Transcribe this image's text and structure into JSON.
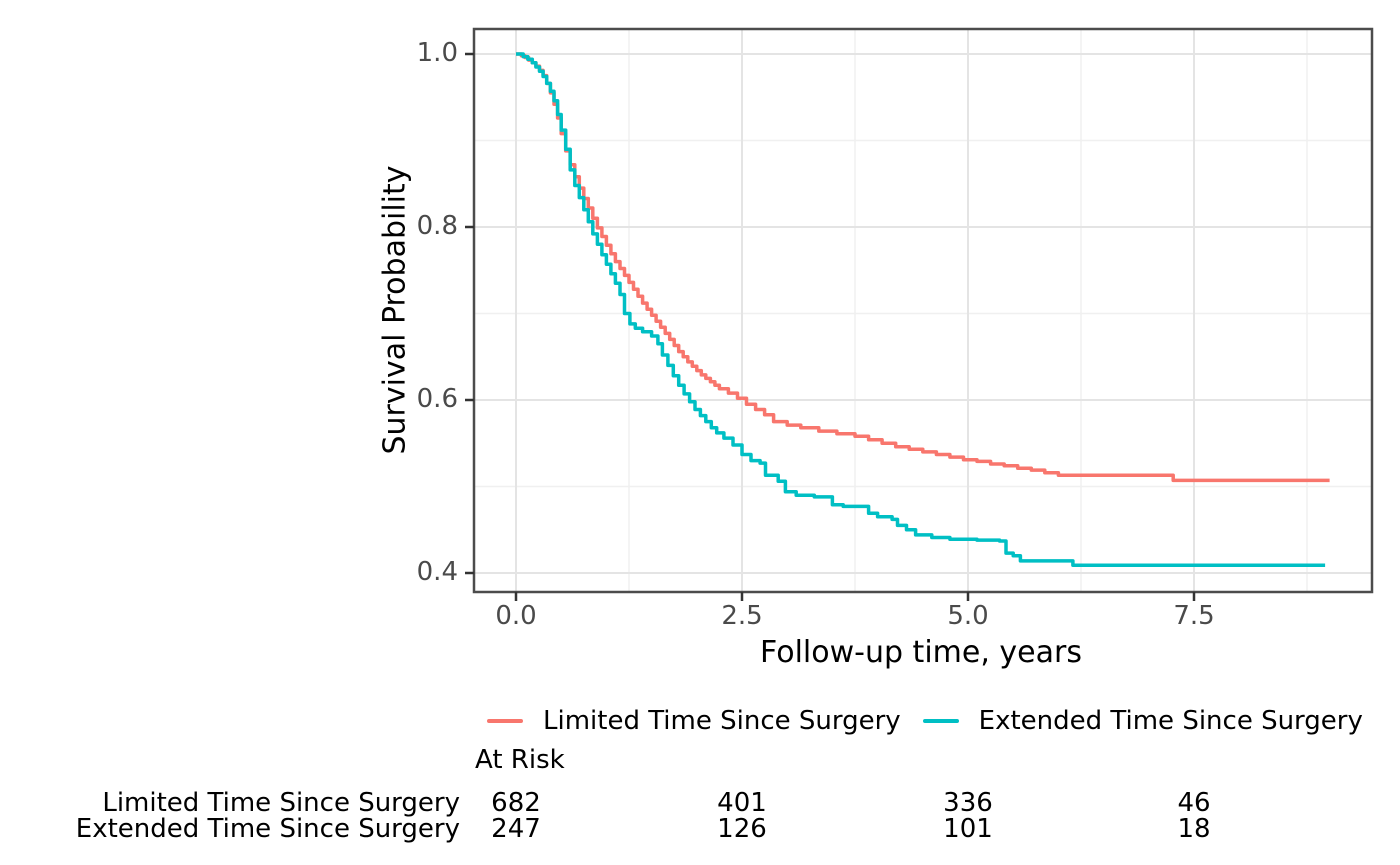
{
  "chart_data": {
    "type": "line",
    "subtype": "kaplan-meier-step",
    "title": "",
    "xlabel": "Follow-up time, years",
    "ylabel": "Survival Probability",
    "x_ticks": [
      0.0,
      2.5,
      5.0,
      7.5
    ],
    "x_tick_labels": [
      "0.0",
      "2.5",
      "5.0",
      "7.5"
    ],
    "x_minor_ticks": [
      1.25,
      3.75,
      6.25,
      8.75
    ],
    "y_ticks": [
      0.4,
      0.6,
      0.8,
      1.0
    ],
    "y_tick_labels": [
      "0.4",
      "0.6",
      "0.8",
      "1.0"
    ],
    "y_minor_ticks": [
      0.5,
      0.7,
      0.9
    ],
    "xlim": [
      -0.465,
      9.47
    ],
    "ylim": [
      0.378,
      1.029
    ],
    "grid": "on",
    "legend_position": "bottom",
    "series": [
      {
        "name": "Limited Time Since Surgery",
        "color": "#F8766D",
        "points": [
          [
            0.0,
            1.0
          ],
          [
            0.06,
            0.998
          ],
          [
            0.1,
            0.996
          ],
          [
            0.14,
            0.993
          ],
          [
            0.18,
            0.99
          ],
          [
            0.22,
            0.986
          ],
          [
            0.26,
            0.981
          ],
          [
            0.3,
            0.975
          ],
          [
            0.34,
            0.966
          ],
          [
            0.38,
            0.955
          ],
          [
            0.42,
            0.942
          ],
          [
            0.46,
            0.926
          ],
          [
            0.5,
            0.908
          ],
          [
            0.55,
            0.888
          ],
          [
            0.6,
            0.872
          ],
          [
            0.65,
            0.858
          ],
          [
            0.7,
            0.845
          ],
          [
            0.75,
            0.833
          ],
          [
            0.8,
            0.822
          ],
          [
            0.85,
            0.81
          ],
          [
            0.9,
            0.799
          ],
          [
            0.95,
            0.789
          ],
          [
            1.0,
            0.779
          ],
          [
            1.05,
            0.769
          ],
          [
            1.1,
            0.76
          ],
          [
            1.15,
            0.752
          ],
          [
            1.2,
            0.744
          ],
          [
            1.25,
            0.736
          ],
          [
            1.3,
            0.728
          ],
          [
            1.35,
            0.72
          ],
          [
            1.4,
            0.712
          ],
          [
            1.45,
            0.705
          ],
          [
            1.5,
            0.698
          ],
          [
            1.55,
            0.691
          ],
          [
            1.6,
            0.684
          ],
          [
            1.65,
            0.677
          ],
          [
            1.7,
            0.67
          ],
          [
            1.75,
            0.663
          ],
          [
            1.8,
            0.656
          ],
          [
            1.85,
            0.65
          ],
          [
            1.9,
            0.644
          ],
          [
            1.95,
            0.639
          ],
          [
            2.0,
            0.634
          ],
          [
            2.05,
            0.629
          ],
          [
            2.1,
            0.625
          ],
          [
            2.15,
            0.621
          ],
          [
            2.2,
            0.617
          ],
          [
            2.25,
            0.613
          ],
          [
            2.35,
            0.608
          ],
          [
            2.45,
            0.602
          ],
          [
            2.55,
            0.595
          ],
          [
            2.65,
            0.589
          ],
          [
            2.75,
            0.583
          ],
          [
            2.85,
            0.575
          ],
          [
            3.0,
            0.571
          ],
          [
            3.15,
            0.568
          ],
          [
            3.35,
            0.564
          ],
          [
            3.55,
            0.561
          ],
          [
            3.75,
            0.558
          ],
          [
            3.9,
            0.554
          ],
          [
            4.05,
            0.55
          ],
          [
            4.2,
            0.546
          ],
          [
            4.35,
            0.543
          ],
          [
            4.5,
            0.54
          ],
          [
            4.65,
            0.537
          ],
          [
            4.8,
            0.534
          ],
          [
            4.95,
            0.531
          ],
          [
            5.1,
            0.529
          ],
          [
            5.25,
            0.526
          ],
          [
            5.4,
            0.524
          ],
          [
            5.55,
            0.521
          ],
          [
            5.7,
            0.519
          ],
          [
            5.85,
            0.516
          ],
          [
            6.0,
            0.513
          ],
          [
            7.27,
            0.507
          ],
          [
            9.0,
            0.507
          ]
        ]
      },
      {
        "name": "Extended Time Since Surgery",
        "color": "#00BFC4",
        "points": [
          [
            0.0,
            1.0
          ],
          [
            0.08,
            0.997
          ],
          [
            0.13,
            0.994
          ],
          [
            0.18,
            0.99
          ],
          [
            0.22,
            0.985
          ],
          [
            0.26,
            0.98
          ],
          [
            0.3,
            0.974
          ],
          [
            0.34,
            0.966
          ],
          [
            0.38,
            0.957
          ],
          [
            0.42,
            0.946
          ],
          [
            0.46,
            0.93
          ],
          [
            0.5,
            0.912
          ],
          [
            0.55,
            0.89
          ],
          [
            0.6,
            0.866
          ],
          [
            0.65,
            0.848
          ],
          [
            0.7,
            0.834
          ],
          [
            0.75,
            0.82
          ],
          [
            0.8,
            0.806
          ],
          [
            0.85,
            0.792
          ],
          [
            0.9,
            0.78
          ],
          [
            0.95,
            0.768
          ],
          [
            1.0,
            0.757
          ],
          [
            1.05,
            0.746
          ],
          [
            1.1,
            0.735
          ],
          [
            1.15,
            0.722
          ],
          [
            1.2,
            0.7
          ],
          [
            1.26,
            0.688
          ],
          [
            1.32,
            0.683
          ],
          [
            1.4,
            0.679
          ],
          [
            1.5,
            0.674
          ],
          [
            1.57,
            0.665
          ],
          [
            1.62,
            0.652
          ],
          [
            1.68,
            0.64
          ],
          [
            1.74,
            0.628
          ],
          [
            1.8,
            0.617
          ],
          [
            1.86,
            0.607
          ],
          [
            1.92,
            0.598
          ],
          [
            1.98,
            0.589
          ],
          [
            2.04,
            0.582
          ],
          [
            2.1,
            0.575
          ],
          [
            2.16,
            0.568
          ],
          [
            2.22,
            0.562
          ],
          [
            2.3,
            0.556
          ],
          [
            2.4,
            0.548
          ],
          [
            2.5,
            0.537
          ],
          [
            2.6,
            0.53
          ],
          [
            2.7,
            0.527
          ],
          [
            2.76,
            0.513
          ],
          [
            2.9,
            0.506
          ],
          [
            2.98,
            0.494
          ],
          [
            3.1,
            0.49
          ],
          [
            3.3,
            0.488
          ],
          [
            3.5,
            0.479
          ],
          [
            3.62,
            0.477
          ],
          [
            3.9,
            0.469
          ],
          [
            4.0,
            0.465
          ],
          [
            4.16,
            0.462
          ],
          [
            4.22,
            0.455
          ],
          [
            4.32,
            0.45
          ],
          [
            4.42,
            0.444
          ],
          [
            4.6,
            0.441
          ],
          [
            4.8,
            0.439
          ],
          [
            5.1,
            0.438
          ],
          [
            5.35,
            0.437
          ],
          [
            5.42,
            0.423
          ],
          [
            5.5,
            0.42
          ],
          [
            5.58,
            0.414
          ],
          [
            6.16,
            0.409
          ],
          [
            8.95,
            0.409
          ]
        ]
      }
    ]
  },
  "legend": {
    "items": [
      {
        "label": "Limited Time Since Surgery",
        "color": "#F8766D"
      },
      {
        "label": "Extended Time Since Surgery",
        "color": "#00BFC4"
      }
    ]
  },
  "risk_table": {
    "header": "At Risk",
    "time_points": [
      0.0,
      2.5,
      5.0,
      7.5
    ],
    "rows": [
      {
        "label": "Limited Time Since Surgery",
        "counts": [
          "682",
          "401",
          "336",
          "46"
        ]
      },
      {
        "label": "Extended Time Since Surgery",
        "counts": [
          "247",
          "126",
          "101",
          "18"
        ]
      }
    ]
  },
  "style_colors": {
    "grid_major": "#e4e4e4",
    "grid_minor": "#f0f0f0",
    "panel_border": "#4c4c4c",
    "tick_mark": "#333333",
    "tick_text": "#4a4a4a"
  }
}
